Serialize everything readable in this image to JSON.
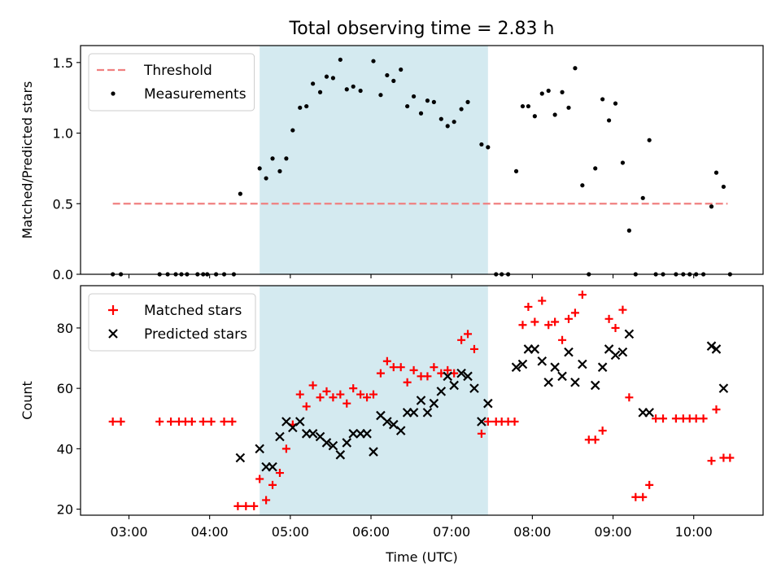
{
  "chart_data": [
    {
      "type": "scatter",
      "title": "Total observing time = 2.83 h",
      "xlabel": "",
      "ylabel": "Matched/Predicted stars",
      "ylim": [
        0,
        1.62
      ],
      "yticks": [
        0,
        0.5,
        1.0,
        1.5
      ],
      "ytick_labels": [
        "0.0",
        "0.5",
        "1.0",
        "1.5"
      ],
      "xlim_hours": [
        2.4,
        10.86
      ],
      "xticks_hours": [
        3,
        4,
        5,
        6,
        7,
        8,
        9,
        10
      ],
      "xtick_labels": [
        "03:00",
        "04:00",
        "05:00",
        "06:00",
        "07:00",
        "08:00",
        "09:00",
        "10:00"
      ],
      "show_xtick_labels": false,
      "grid": false,
      "legend": "upper-left",
      "highlight": {
        "start": 4.62,
        "end": 7.45,
        "color": "#d4eaf0"
      },
      "threshold": {
        "name": "Threshold",
        "y": 0.5,
        "x_start": 2.8,
        "x_end": 10.42,
        "color": "#f08080"
      },
      "series": [
        {
          "name": "Measurements",
          "color": "#000000",
          "x": [
            2.8,
            2.9,
            3.38,
            3.48,
            3.58,
            3.65,
            3.72,
            3.85,
            3.92,
            3.97,
            4.08,
            4.18,
            4.3,
            4.38,
            4.62,
            4.7,
            4.78,
            4.87,
            4.95,
            5.03,
            5.12,
            5.2,
            5.28,
            5.37,
            5.45,
            5.53,
            5.62,
            5.7,
            5.78,
            5.87,
            6.03,
            6.12,
            6.2,
            6.28,
            6.37,
            6.45,
            6.53,
            6.62,
            6.7,
            6.78,
            6.87,
            6.95,
            7.03,
            7.12,
            7.2,
            7.37,
            7.45,
            7.55,
            7.62,
            7.7,
            7.8,
            7.88,
            7.95,
            8.03,
            8.12,
            8.2,
            8.28,
            8.37,
            8.45,
            8.53,
            8.62,
            8.7,
            8.78,
            8.87,
            8.95,
            9.03,
            9.12,
            9.2,
            9.28,
            9.37,
            9.45,
            9.53,
            9.62,
            9.78,
            9.87,
            9.95,
            10.03,
            10.12,
            10.22,
            10.28,
            10.37,
            10.45
          ],
          "y": [
            0,
            0,
            0,
            0,
            0,
            0,
            0,
            0,
            0,
            0,
            0,
            0,
            0,
            0.57,
            0.75,
            0.68,
            0.82,
            0.73,
            0.82,
            1.02,
            1.18,
            1.19,
            1.35,
            1.29,
            1.4,
            1.39,
            1.52,
            1.31,
            1.33,
            1.3,
            1.51,
            1.27,
            1.41,
            1.37,
            1.45,
            1.19,
            1.26,
            1.14,
            1.23,
            1.22,
            1.1,
            1.05,
            1.08,
            1.17,
            1.22,
            0.92,
            0.9,
            0,
            0,
            0,
            0.73,
            1.19,
            1.19,
            1.12,
            1.28,
            1.3,
            1.13,
            1.29,
            1.18,
            1.46,
            0.63,
            0,
            0.75,
            1.24,
            1.09,
            1.21,
            0.79,
            0.31,
            0,
            0.54,
            0.95,
            0,
            0,
            0,
            0,
            0,
            0,
            0,
            0.48,
            0.72,
            0.62,
            0
          ]
        }
      ]
    },
    {
      "type": "scatter",
      "xlabel": "Time (UTC)",
      "ylabel": "Count",
      "ylim": [
        18,
        94
      ],
      "yticks": [
        20,
        40,
        60,
        80
      ],
      "ytick_labels": [
        "20",
        "40",
        "60",
        "80"
      ],
      "xlim_hours": [
        2.4,
        10.86
      ],
      "xticks_hours": [
        3,
        4,
        5,
        6,
        7,
        8,
        9,
        10
      ],
      "xtick_labels": [
        "03:00",
        "04:00",
        "05:00",
        "06:00",
        "07:00",
        "08:00",
        "09:00",
        "10:00"
      ],
      "show_xtick_labels": true,
      "grid": false,
      "legend": "upper-left",
      "highlight": {
        "start": 4.62,
        "end": 7.45,
        "color": "#d4eaf0"
      },
      "series": [
        {
          "name": "Matched stars",
          "marker": "plus",
          "color": "#ff0000",
          "x": [
            2.8,
            2.9,
            3.38,
            3.52,
            3.62,
            3.7,
            3.78,
            3.92,
            4.02,
            4.18,
            4.28,
            4.35,
            4.45,
            4.55,
            4.62,
            4.7,
            4.78,
            4.87,
            4.95,
            5.03,
            5.12,
            5.2,
            5.28,
            5.37,
            5.45,
            5.53,
            5.62,
            5.7,
            5.78,
            5.87,
            5.95,
            6.03,
            6.12,
            6.2,
            6.28,
            6.37,
            6.45,
            6.53,
            6.62,
            6.7,
            6.78,
            6.87,
            6.95,
            7.03,
            7.12,
            7.2,
            7.28,
            7.37,
            7.45,
            7.55,
            7.62,
            7.7,
            7.78,
            7.88,
            7.95,
            8.03,
            8.12,
            8.2,
            8.28,
            8.37,
            8.45,
            8.53,
            8.62,
            8.7,
            8.78,
            8.87,
            8.95,
            9.03,
            9.12,
            9.2,
            9.28,
            9.37,
            9.45,
            9.53,
            9.62,
            9.78,
            9.87,
            9.95,
            10.03,
            10.12,
            10.22,
            10.28,
            10.37,
            10.45
          ],
          "y": [
            49,
            49,
            49,
            49,
            49,
            49,
            49,
            49,
            49,
            49,
            49,
            21,
            21,
            21,
            30,
            23,
            28,
            32,
            40,
            48,
            58,
            54,
            61,
            57,
            59,
            57,
            58,
            55,
            60,
            58,
            57,
            58,
            65,
            69,
            67,
            67,
            62,
            66,
            64,
            64,
            67,
            65,
            66,
            65,
            76,
            78,
            73,
            45,
            49,
            49,
            49,
            49,
            49,
            81,
            87,
            82,
            89,
            81,
            82,
            76,
            83,
            85,
            91,
            43,
            43,
            46,
            83,
            80,
            86,
            57,
            24,
            24,
            28,
            50,
            50,
            50,
            50,
            50,
            50,
            50,
            36,
            53,
            37,
            37
          ]
        },
        {
          "name": "Predicted stars",
          "marker": "cross",
          "color": "#000000",
          "x": [
            4.38,
            4.62,
            4.7,
            4.78,
            4.87,
            4.95,
            5.03,
            5.12,
            5.2,
            5.28,
            5.37,
            5.45,
            5.53,
            5.62,
            5.7,
            5.78,
            5.87,
            5.95,
            6.03,
            6.12,
            6.2,
            6.28,
            6.37,
            6.45,
            6.53,
            6.62,
            6.7,
            6.78,
            6.87,
            6.95,
            7.03,
            7.12,
            7.2,
            7.28,
            7.37,
            7.45,
            7.8,
            7.88,
            7.95,
            8.03,
            8.12,
            8.2,
            8.28,
            8.37,
            8.45,
            8.53,
            8.62,
            8.78,
            8.87,
            8.95,
            9.03,
            9.12,
            9.2,
            9.37,
            9.45,
            10.22,
            10.28,
            10.37
          ],
          "y": [
            37,
            40,
            34,
            34,
            44,
            49,
            47,
            49,
            45,
            45,
            44,
            42,
            41,
            38,
            42,
            45,
            45,
            45,
            39,
            51,
            49,
            48,
            46,
            52,
            52,
            56,
            52,
            55,
            59,
            64,
            61,
            65,
            64,
            60,
            49,
            55,
            67,
            68,
            73,
            73,
            69,
            62,
            67,
            64,
            72,
            62,
            68,
            61,
            67,
            73,
            71,
            72,
            78,
            52,
            52,
            74,
            73,
            60
          ]
        }
      ]
    }
  ]
}
